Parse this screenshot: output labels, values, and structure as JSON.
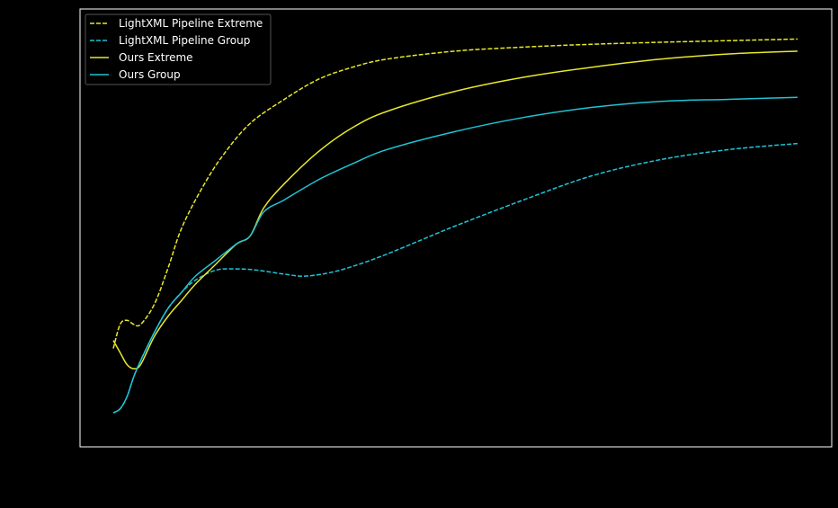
{
  "chart_data": {
    "type": "line",
    "title": "",
    "xlabel": "",
    "ylabel": "",
    "xlim": [
      0,
      100
    ],
    "ylim": [
      0,
      100
    ],
    "grid": false,
    "legend_position": "top-left",
    "background_color": "#000000",
    "axes_color": "#ffffff",
    "series": [
      {
        "name": "LightXML Pipeline Extreme",
        "color": "#e8e82a",
        "style": "dashed",
        "x": [
          0,
          1,
          2,
          3,
          4,
          6,
          8,
          10,
          13,
          16,
          20,
          25,
          30,
          35,
          40,
          50,
          60,
          70,
          80,
          90,
          100
        ],
        "y": [
          20,
          26,
          27,
          26,
          26,
          31,
          40,
          50,
          60,
          68,
          76,
          82,
          87,
          90,
          92,
          94,
          95,
          95.7,
          96.2,
          96.6,
          97
        ]
      },
      {
        "name": "LightXML Pipeline Group",
        "color": "#1fc4d6",
        "style": "dashed",
        "x": [
          0,
          1,
          2,
          3,
          4,
          6,
          8,
          10,
          12,
          15,
          18,
          21,
          25,
          28,
          32,
          36,
          40,
          45,
          50,
          60,
          70,
          80,
          90,
          100
        ],
        "y": [
          4,
          5,
          8,
          13,
          17,
          24,
          30,
          34,
          37,
          39.5,
          39.8,
          39.5,
          38.5,
          38,
          39,
          41,
          43.5,
          47,
          50.5,
          57,
          63,
          67,
          69.5,
          71
        ]
      },
      {
        "name": "Ours Extreme",
        "color": "#e8e82a",
        "style": "solid",
        "x": [
          0,
          1,
          2,
          3,
          4,
          6,
          8,
          10,
          12,
          15,
          18,
          20,
          22,
          25,
          30,
          35,
          40,
          50,
          60,
          70,
          80,
          90,
          100
        ],
        "y": [
          22,
          19,
          16,
          15,
          16,
          23,
          28,
          32,
          36,
          41,
          46,
          48,
          55,
          61,
          69,
          75,
          79,
          84,
          87.5,
          90,
          92,
          93.3,
          94
        ]
      },
      {
        "name": "Ours Group",
        "color": "#1fc4d6",
        "style": "solid",
        "x": [
          0,
          1,
          2,
          3,
          4,
          6,
          8,
          10,
          12,
          15,
          18,
          20,
          22,
          25,
          30,
          35,
          40,
          50,
          60,
          70,
          80,
          90,
          100
        ],
        "y": [
          4,
          5,
          8,
          13,
          17,
          24,
          30,
          34,
          38,
          42,
          46,
          48,
          54,
          57,
          62,
          66,
          69.5,
          74,
          77.5,
          80,
          81.5,
          82,
          82.5
        ]
      }
    ]
  }
}
